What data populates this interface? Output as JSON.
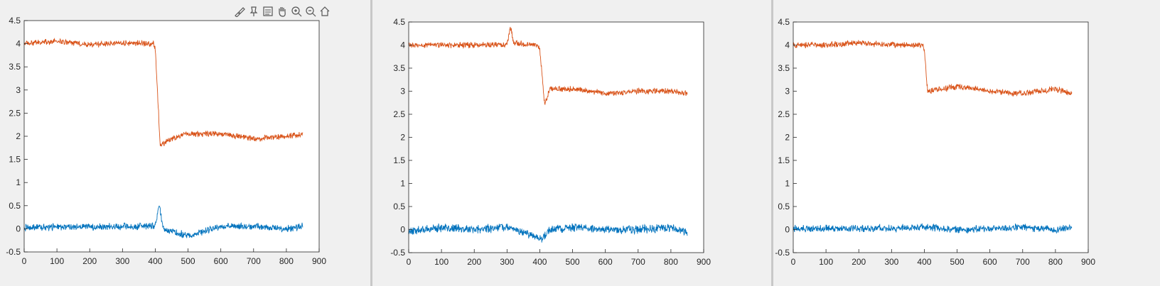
{
  "toolbar": {
    "icons": [
      "brush-icon",
      "data-tips-icon",
      "legend-icon",
      "pan-icon",
      "zoom-in-icon",
      "zoom-out-icon",
      "home-icon"
    ]
  },
  "chart_data": [
    {
      "type": "line",
      "title": "",
      "xlabel": "",
      "ylabel": "",
      "xlim": [
        0,
        900
      ],
      "ylim": [
        -0.5,
        4.5
      ],
      "xticks": [
        0,
        100,
        200,
        300,
        400,
        500,
        600,
        700,
        800,
        900
      ],
      "yticks": [
        -0.5,
        0,
        0.5,
        1,
        1.5,
        2,
        2.5,
        3,
        3.5,
        4,
        4.5
      ],
      "x_end": 850,
      "grid": false,
      "series": [
        {
          "color": "#d95319",
          "keypoints": [
            [
              0,
              4.0
            ],
            [
              100,
              4.05
            ],
            [
              200,
              3.98
            ],
            [
              300,
              4.02
            ],
            [
              395,
              4.0
            ],
            [
              400,
              3.9
            ],
            [
              415,
              1.8
            ],
            [
              450,
              1.95
            ],
            [
              500,
              2.05
            ],
            [
              600,
              2.05
            ],
            [
              700,
              1.95
            ],
            [
              800,
              2.0
            ],
            [
              850,
              2.05
            ]
          ],
          "noise": 0.05
        },
        {
          "color": "#0072bd",
          "keypoints": [
            [
              0,
              0.02
            ],
            [
              200,
              0.05
            ],
            [
              400,
              0.05
            ],
            [
              412,
              0.5
            ],
            [
              425,
              0.0
            ],
            [
              500,
              -0.15
            ],
            [
              600,
              0.05
            ],
            [
              700,
              0.05
            ],
            [
              800,
              0.0
            ],
            [
              850,
              0.05
            ]
          ],
          "noise": 0.06
        }
      ]
    },
    {
      "type": "line",
      "title": "",
      "xlabel": "",
      "ylabel": "",
      "xlim": [
        0,
        900
      ],
      "ylim": [
        -0.5,
        4.5
      ],
      "xticks": [
        0,
        100,
        200,
        300,
        400,
        500,
        600,
        700,
        800,
        900
      ],
      "yticks": [
        -0.5,
        0,
        0.5,
        1,
        1.5,
        2,
        2.5,
        3,
        3.5,
        4,
        4.5
      ],
      "x_end": 850,
      "grid": false,
      "series": [
        {
          "color": "#d95319",
          "keypoints": [
            [
              0,
              4.0
            ],
            [
              100,
              4.0
            ],
            [
              300,
              4.0
            ],
            [
              310,
              4.4
            ],
            [
              320,
              4.05
            ],
            [
              395,
              4.0
            ],
            [
              400,
              3.9
            ],
            [
              415,
              2.7
            ],
            [
              430,
              3.05
            ],
            [
              500,
              3.05
            ],
            [
              600,
              2.95
            ],
            [
              700,
              3.0
            ],
            [
              800,
              3.0
            ],
            [
              850,
              2.95
            ]
          ],
          "noise": 0.05
        },
        {
          "color": "#0072bd",
          "keypoints": [
            [
              0,
              -0.05
            ],
            [
              100,
              0.05
            ],
            [
              200,
              0.0
            ],
            [
              300,
              0.05
            ],
            [
              410,
              -0.2
            ],
            [
              430,
              0.0
            ],
            [
              500,
              0.05
            ],
            [
              600,
              0.0
            ],
            [
              700,
              0.0
            ],
            [
              800,
              0.05
            ],
            [
              850,
              -0.05
            ]
          ],
          "noise": 0.07
        }
      ]
    },
    {
      "type": "line",
      "title": "",
      "xlabel": "",
      "ylabel": "",
      "xlim": [
        0,
        900
      ],
      "ylim": [
        -0.5,
        4.5
      ],
      "xticks": [
        0,
        100,
        200,
        300,
        400,
        500,
        600,
        700,
        800,
        900
      ],
      "yticks": [
        -0.5,
        0,
        0.5,
        1,
        1.5,
        2,
        2.5,
        3,
        3.5,
        4,
        4.5
      ],
      "x_end": 850,
      "grid": false,
      "series": [
        {
          "color": "#d95319",
          "keypoints": [
            [
              0,
              4.0
            ],
            [
              100,
              4.0
            ],
            [
              200,
              4.05
            ],
            [
              300,
              4.0
            ],
            [
              395,
              4.0
            ],
            [
              400,
              3.9
            ],
            [
              410,
              3.0
            ],
            [
              500,
              3.1
            ],
            [
              600,
              3.0
            ],
            [
              700,
              2.95
            ],
            [
              800,
              3.05
            ],
            [
              850,
              2.95
            ]
          ],
          "noise": 0.05
        },
        {
          "color": "#0072bd",
          "keypoints": [
            [
              0,
              0.02
            ],
            [
              200,
              0.02
            ],
            [
              400,
              0.05
            ],
            [
              500,
              0.0
            ],
            [
              600,
              0.02
            ],
            [
              700,
              0.05
            ],
            [
              800,
              0.0
            ],
            [
              850,
              0.05
            ]
          ],
          "noise": 0.06
        }
      ]
    }
  ]
}
